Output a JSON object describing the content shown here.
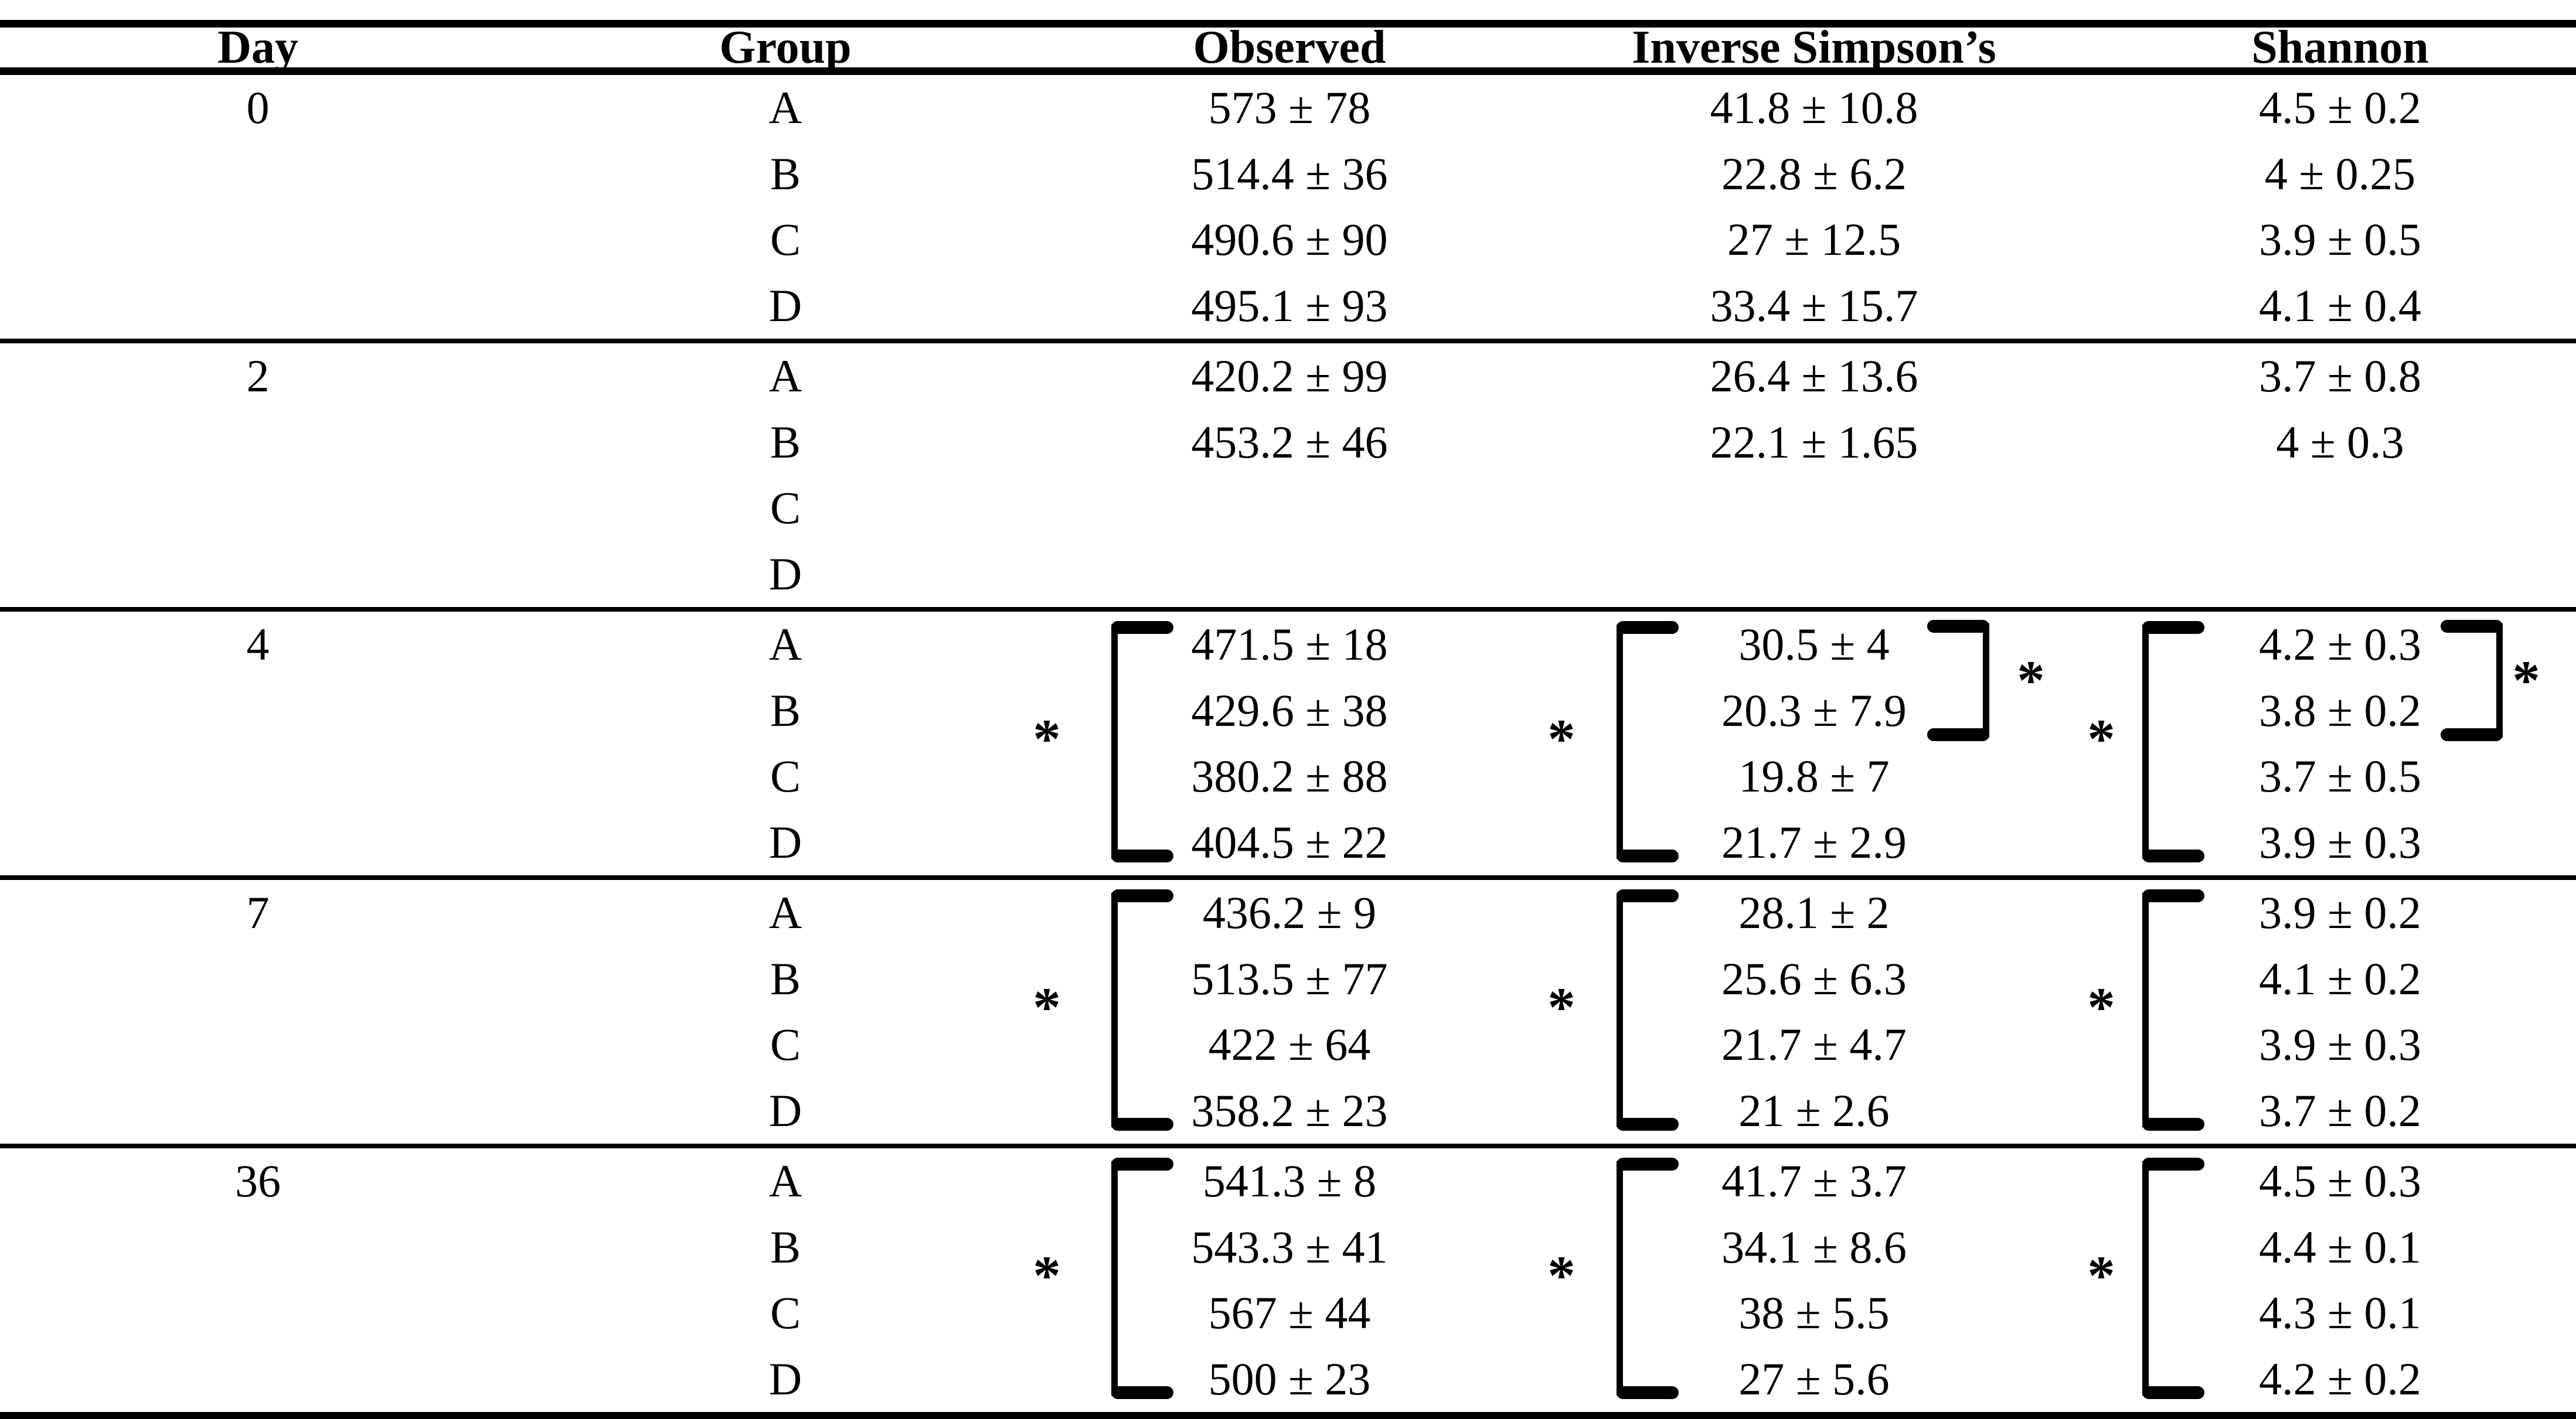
{
  "columns": [
    "Day",
    "Group",
    "Observed",
    "Inverse Simpson’s",
    "Shannon"
  ],
  "sections": [
    {
      "day": "0",
      "rows": [
        {
          "group": "A",
          "observed": "573 ± 78",
          "inverse_simpsons": "41.8 ± 10.8",
          "shannon": "4.5 ± 0.2"
        },
        {
          "group": "B",
          "observed": "514.4 ± 36",
          "inverse_simpsons": "22.8 ± 6.2",
          "shannon": "4 ± 0.25"
        },
        {
          "group": "C",
          "observed": "490.6 ± 90",
          "inverse_simpsons": "27 ± 12.5",
          "shannon": "3.9 ± 0.5"
        },
        {
          "group": "D",
          "observed": "495.1 ± 93",
          "inverse_simpsons": "33.4 ± 15.7",
          "shannon": "4.1 ± 0.4"
        }
      ]
    },
    {
      "day": "2",
      "rows": [
        {
          "group": "A",
          "observed": "420.2 ± 99",
          "inverse_simpsons": "26.4 ± 13.6",
          "shannon": "3.7 ± 0.8"
        },
        {
          "group": "B",
          "observed": "453.2 ± 46",
          "inverse_simpsons": "22.1 ± 1.65",
          "shannon": "4 ± 0.3"
        },
        {
          "group": "C",
          "observed": "",
          "inverse_simpsons": "",
          "shannon": ""
        },
        {
          "group": "D",
          "observed": "",
          "inverse_simpsons": "",
          "shannon": ""
        }
      ]
    },
    {
      "day": "4",
      "rows": [
        {
          "group": "A",
          "observed": "471.5 ± 18",
          "inverse_simpsons": "30.5 ± 4",
          "shannon": "4.2 ± 0.3"
        },
        {
          "group": "B",
          "observed": "429.6 ± 38",
          "inverse_simpsons": "20.3 ± 7.9",
          "shannon": "3.8 ± 0.2"
        },
        {
          "group": "C",
          "observed": "380.2 ± 88",
          "inverse_simpsons": "19.8 ± 7",
          "shannon": "3.7 ± 0.5"
        },
        {
          "group": "D",
          "observed": "404.5 ± 22",
          "inverse_simpsons": "21.7 ± 2.9",
          "shannon": "3.9 ± 0.3"
        }
      ]
    },
    {
      "day": "7",
      "rows": [
        {
          "group": "A",
          "observed": "436.2 ± 9",
          "inverse_simpsons": "28.1 ± 2",
          "shannon": "3.9 ± 0.2"
        },
        {
          "group": "B",
          "observed": "513.5 ± 77",
          "inverse_simpsons": "25.6 ± 6.3",
          "shannon": "4.1 ± 0.2"
        },
        {
          "group": "C",
          "observed": "422 ± 64",
          "inverse_simpsons": "21.7 ± 4.7",
          "shannon": "3.9 ± 0.3"
        },
        {
          "group": "D",
          "observed": "358.2 ± 23",
          "inverse_simpsons": "21 ± 2.6",
          "shannon": "3.7 ± 0.2"
        }
      ]
    },
    {
      "day": "36",
      "rows": [
        {
          "group": "A",
          "observed": "541.3 ± 8",
          "inverse_simpsons": "41.7 ± 3.7",
          "shannon": "4.5 ± 0.3"
        },
        {
          "group": "B",
          "observed": "543.3 ± 41",
          "inverse_simpsons": "34.1 ± 8.6",
          "shannon": "4.4 ± 0.1"
        },
        {
          "group": "C",
          "observed": "567 ± 44",
          "inverse_simpsons": "38 ± 5.5",
          "shannon": "4.3 ± 0.1"
        },
        {
          "group": "D",
          "observed": "500 ± 23",
          "inverse_simpsons": "27 ± 5.6",
          "shannon": "4.2 ± 0.2"
        }
      ]
    }
  ],
  "significance": [
    {
      "day": "4",
      "column": "Observed",
      "groups": "A–D",
      "marker": "*"
    },
    {
      "day": "4",
      "column": "Inverse Simpson’s",
      "groups": "A–D",
      "marker": "*"
    },
    {
      "day": "4",
      "column": "Inverse Simpson’s",
      "groups": "A–B",
      "marker": "*"
    },
    {
      "day": "4",
      "column": "Shannon",
      "groups": "A–D",
      "marker": "*"
    },
    {
      "day": "4",
      "column": "Shannon",
      "groups": "A–B",
      "marker": "*"
    },
    {
      "day": "7",
      "column": "Observed",
      "groups": "A–D",
      "marker": "*"
    },
    {
      "day": "7",
      "column": "Inverse Simpson’s",
      "groups": "A–D",
      "marker": "*"
    },
    {
      "day": "7",
      "column": "Shannon",
      "groups": "A–D",
      "marker": "*"
    },
    {
      "day": "36",
      "column": "Observed",
      "groups": "A–D",
      "marker": "*"
    },
    {
      "day": "36",
      "column": "Inverse Simpson’s",
      "groups": "A–D",
      "marker": "*"
    },
    {
      "day": "36",
      "column": "Shannon",
      "groups": "A–D",
      "marker": "*"
    }
  ],
  "chart_data": {
    "type": "table",
    "title": "Alpha diversity (Observed, Inverse Simpson’s, Shannon) by Day and Group",
    "columns": [
      "Day",
      "Group",
      "Observed",
      "Inverse Simpson's",
      "Shannon"
    ],
    "rows": [
      [
        "0",
        "A",
        "573 ± 78",
        "41.8 ± 10.8",
        "4.5 ± 0.2"
      ],
      [
        "0",
        "B",
        "514.4 ± 36",
        "22.8 ± 6.2",
        "4 ± 0.25"
      ],
      [
        "0",
        "C",
        "490.6 ± 90",
        "27 ± 12.5",
        "3.9 ± 0.5"
      ],
      [
        "0",
        "D",
        "495.1 ± 93",
        "33.4 ± 15.7",
        "4.1 ± 0.4"
      ],
      [
        "2",
        "A",
        "420.2 ± 99",
        "26.4 ± 13.6",
        "3.7 ± 0.8"
      ],
      [
        "2",
        "B",
        "453.2 ± 46",
        "22.1 ± 1.65",
        "4 ± 0.3"
      ],
      [
        "2",
        "C",
        "",
        "",
        ""
      ],
      [
        "2",
        "D",
        "",
        "",
        ""
      ],
      [
        "4",
        "A",
        "471.5 ± 18",
        "30.5 ± 4",
        "4.2 ± 0.3"
      ],
      [
        "4",
        "B",
        "429.6 ± 38",
        "20.3 ± 7.9",
        "3.8 ± 0.2"
      ],
      [
        "4",
        "C",
        "380.2 ± 88",
        "19.8 ± 7",
        "3.7 ± 0.5"
      ],
      [
        "4",
        "D",
        "404.5 ± 22",
        "21.7 ± 2.9",
        "3.9 ± 0.3"
      ],
      [
        "7",
        "A",
        "436.2 ± 9",
        "28.1 ± 2",
        "3.9 ± 0.2"
      ],
      [
        "7",
        "B",
        "513.5 ± 77",
        "25.6 ± 6.3",
        "4.1 ± 0.2"
      ],
      [
        "7",
        "C",
        "422 ± 64",
        "21.7 ± 4.7",
        "3.9 ± 0.3"
      ],
      [
        "7",
        "D",
        "358.2 ± 23",
        "21 ± 2.6",
        "3.7 ± 0.2"
      ],
      [
        "36",
        "A",
        "541.3 ± 8",
        "41.7 ± 3.7",
        "4.5 ± 0.3"
      ],
      [
        "36",
        "B",
        "543.3 ± 41",
        "34.1 ± 8.6",
        "4.4 ± 0.1"
      ],
      [
        "36",
        "C",
        "567 ± 44",
        "38 ± 5.5",
        "4.3 ± 0.1"
      ],
      [
        "36",
        "D",
        "500 ± 23",
        "27 ± 5.6",
        "4.2 ± 0.2"
      ]
    ]
  }
}
